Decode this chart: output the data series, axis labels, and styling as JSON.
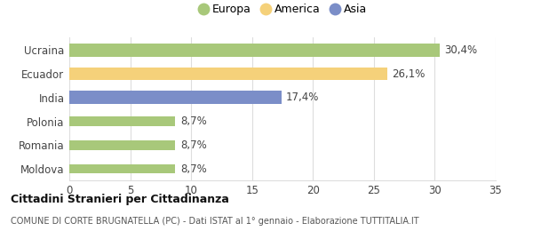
{
  "categories": [
    "Ucraina",
    "Ecuador",
    "India",
    "Polonia",
    "Romania",
    "Moldova"
  ],
  "values": [
    30.4,
    26.1,
    17.4,
    8.7,
    8.7,
    8.7
  ],
  "labels": [
    "30,4%",
    "26,1%",
    "17,4%",
    "8,7%",
    "8,7%",
    "8,7%"
  ],
  "colors": [
    "#a8c87a",
    "#f5d17a",
    "#7b8ec8",
    "#a8c87a",
    "#a8c87a",
    "#a8c87a"
  ],
  "bar_heights": [
    0.55,
    0.55,
    0.55,
    0.4,
    0.4,
    0.4
  ],
  "legend_items": [
    {
      "label": "Europa",
      "color": "#a8c87a"
    },
    {
      "label": "America",
      "color": "#f5d17a"
    },
    {
      "label": "Asia",
      "color": "#7b8ec8"
    }
  ],
  "xlim": [
    0,
    35
  ],
  "xticks": [
    0,
    5,
    10,
    15,
    20,
    25,
    30,
    35
  ],
  "title": "Cittadini Stranieri per Cittadinanza",
  "subtitle": "COMUNE DI CORTE BRUGNATELLA (PC) - Dati ISTAT al 1° gennaio - Elaborazione TUTTITALIA.IT",
  "background_color": "#ffffff",
  "grid_color": "#dddddd",
  "label_fontsize": 8.5,
  "ytick_fontsize": 8.5,
  "xtick_fontsize": 8.5
}
